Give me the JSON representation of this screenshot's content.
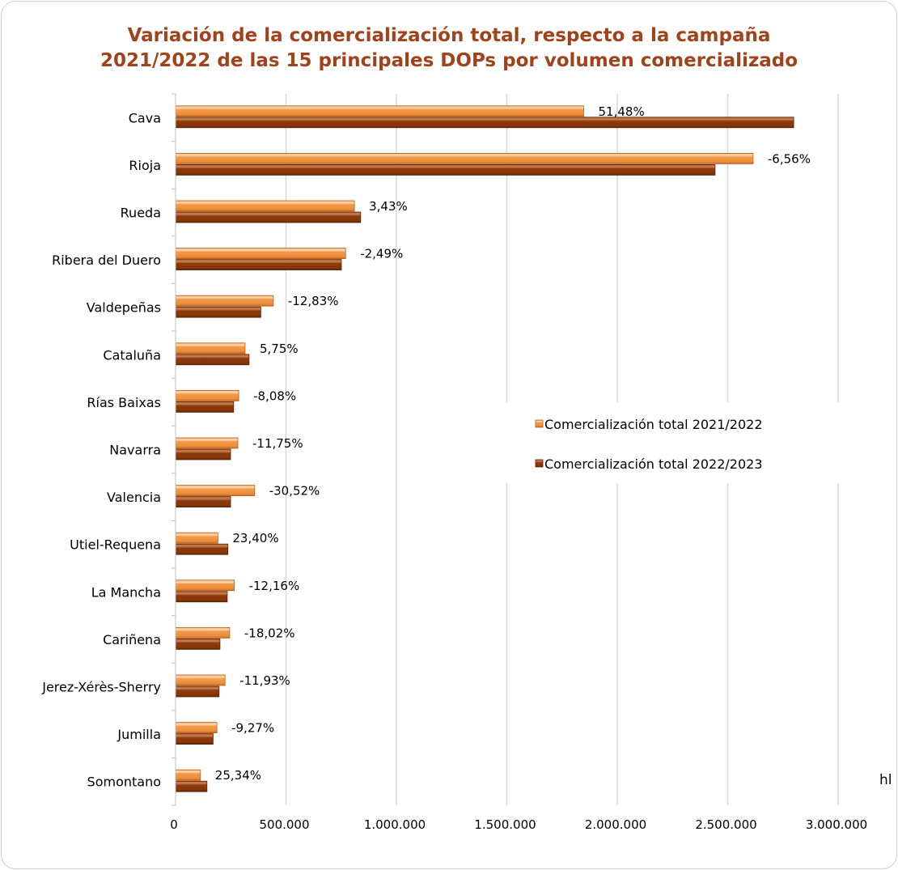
{
  "chart_data": {
    "type": "bar",
    "orientation": "horizontal",
    "title": "Variación de la comercialización total, respecto a la campaña 2021/2022 de las 15 principales DOPs por volumen comercializado",
    "title_color": "#A0421A",
    "xlabel": "hl",
    "ylabel": "",
    "xlim": [
      0,
      3000000
    ],
    "x_ticks": [
      "0",
      "500.000",
      "1.000.000",
      "1.500.000",
      "2.000.000",
      "2.500.000",
      "3.000.000"
    ],
    "categories": [
      "Cava",
      "Rioja",
      "Rueda",
      "Ribera del Duero",
      "Valdepeñas",
      "Cataluña",
      "Rías Baixas",
      "Navarra",
      "Valencia",
      "Utiel-Requena",
      "La Mancha",
      "Cariñena",
      "Jerez-Xérès-Sherry",
      "Jumilla",
      "Somontano"
    ],
    "series": [
      {
        "name": "Comercialización total 2021/2022",
        "color": "#F29A4A",
        "values": [
          1848000,
          2615000,
          810000,
          770000,
          443000,
          315000,
          286000,
          282000,
          358000,
          192000,
          266000,
          245000,
          224000,
          187000,
          113000
        ]
      },
      {
        "name": "Comercialización total 2022/2023",
        "color": "#8E3B0C",
        "values": [
          2799000,
          2443000,
          838000,
          751000,
          386000,
          333000,
          263000,
          249000,
          249000,
          237000,
          234000,
          201000,
          197000,
          170000,
          142000
        ]
      }
    ],
    "data_labels": [
      "51,48%",
      "-6,56%",
      "3,43%",
      "-2,49%",
      "-12,83%",
      "5,75%",
      "-8,08%",
      "-11,75%",
      "-30,52%",
      "23,40%",
      "-12,16%",
      "-18,02%",
      "-11,93%",
      "-9,27%",
      "25,34%"
    ],
    "grid": true,
    "legend_position": "right-middle inside plot area"
  }
}
